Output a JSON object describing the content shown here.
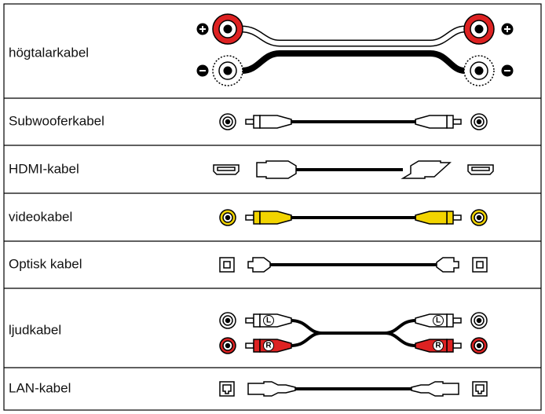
{
  "table": {
    "rows": [
      {
        "label": "högtalarkabel"
      },
      {
        "label": "Subwooferkabel"
      },
      {
        "label": "HDMI-kabel"
      },
      {
        "label": "videokabel"
      },
      {
        "label": "Optisk kabel"
      },
      {
        "label": "ljudkabel",
        "connectors": [
          "L",
          "R"
        ]
      },
      {
        "label": "LAN-kabel"
      }
    ]
  }
}
